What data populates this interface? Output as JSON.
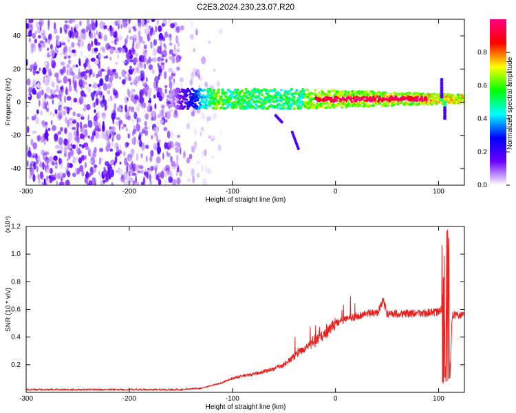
{
  "title": "C2E3.2024.230.23.07.R20",
  "chart_data": [
    {
      "type": "heatmap",
      "xlabel": "Height of straight line (km)",
      "ylabel": "Frequency (Hz)",
      "xlim": [
        -300,
        125
      ],
      "ylim": [
        -50,
        50
      ],
      "xticks": [
        -300,
        -200,
        -100,
        0,
        100
      ],
      "yticks": [
        -40,
        -20,
        0,
        20,
        40
      ],
      "colorbar": {
        "label": "Normalized spectral amplitude",
        "range": [
          0,
          1
        ],
        "ticks": [
          "0.0",
          "0.2",
          "0.4",
          "0.6",
          "0.8"
        ],
        "colors": [
          "#ffffff",
          "#6a00ff",
          "#0000ff",
          "#00ffff",
          "#00ff00",
          "#ffff00",
          "#ff0000",
          "#ff0080"
        ]
      },
      "features": {
        "noise_region_x": [
          -300,
          -120
        ],
        "signal_band_x": [
          -160,
          125
        ],
        "signal_center_hz": 2,
        "peak_amplitude_x": [
          -20,
          90
        ]
      }
    },
    {
      "type": "line",
      "xlabel": "Height of straight line (km)",
      "ylabel": "SNR (10 * v/v)",
      "y_multiplier": "(x10⁴)",
      "xlim": [
        -300,
        125
      ],
      "ylim": [
        0,
        1.2
      ],
      "xticks": [
        -300,
        -200,
        -100,
        0,
        100
      ],
      "yticks": [
        "0.2",
        "0.4",
        "0.6",
        "0.8",
        "1.0",
        "1.2"
      ],
      "color": "#e8201e",
      "series": [
        {
          "x": [
            -300,
            -250,
            -200,
            -150,
            -130,
            -120,
            -110,
            -100,
            -90,
            -80,
            -70,
            -60,
            -50,
            -40,
            -30,
            -20,
            -15,
            -10,
            -5,
            0,
            10,
            20,
            30,
            40,
            46,
            50,
            60,
            80,
            100,
            103,
            105,
            107,
            109,
            111,
            113,
            115,
            125
          ],
          "y": [
            0.02,
            0.02,
            0.02,
            0.02,
            0.03,
            0.05,
            0.07,
            0.1,
            0.12,
            0.13,
            0.15,
            0.17,
            0.2,
            0.26,
            0.32,
            0.36,
            0.4,
            0.42,
            0.46,
            0.5,
            0.53,
            0.55,
            0.57,
            0.57,
            0.67,
            0.57,
            0.57,
            0.57,
            0.58,
            0.6,
            0.85,
            0.1,
            1.1,
            0.1,
            0.55,
            0.56,
            0.56
          ]
        }
      ]
    }
  ]
}
